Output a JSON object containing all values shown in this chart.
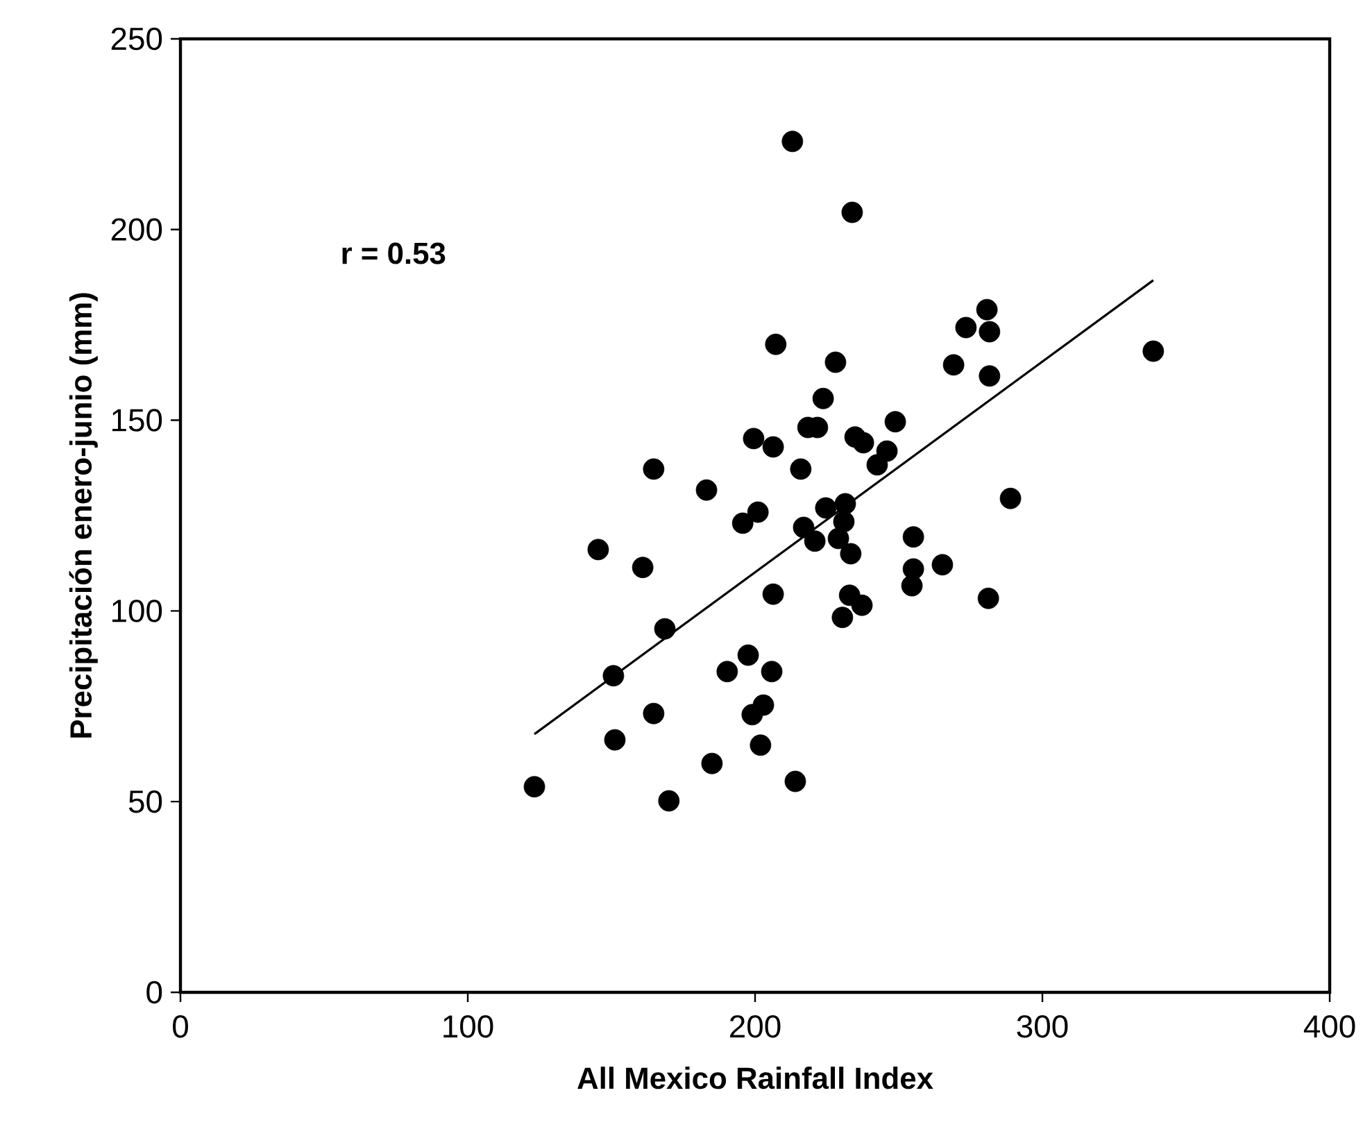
{
  "chart_data": {
    "type": "scatter",
    "xlabel": "All Mexico Rainfall Index",
    "ylabel": "Precipitación enero-junio (mm)",
    "annotations": [
      "r = 0.53"
    ],
    "xlim": [
      0,
      400
    ],
    "ylim": [
      0,
      250
    ],
    "xticks": [
      0,
      100,
      200,
      300,
      400
    ],
    "yticks": [
      0,
      50,
      100,
      150,
      200,
      250
    ],
    "marker": "circle",
    "grid": false,
    "series": [
      {
        "color": "#000000",
        "x": [
          164.7,
          183.1,
          199.5,
          206.3,
          218.4,
          221.7,
          234.8,
          237.7,
          248.8,
          245.9,
          242.5,
          215.9,
          201.0,
          195.7,
          224.6,
          231.4,
          230.9,
          216.9,
          220.8,
          229.0,
          233.3,
          288.9,
          255.1,
          265.2,
          255.1,
          254.6,
          281.2,
          232.9,
          237.2,
          230.4,
          206.3,
          145.4,
          160.9,
          168.6,
          150.7,
          164.7,
          151.2,
          197.6,
          190.3,
          205.8,
          202.9,
          199.0,
          201.9,
          185.0,
          214.0,
          123.2,
          170.0,
          213.0,
          233.8,
          207.2,
          228.0,
          223.7,
          280.7,
          273.4,
          281.6,
          269.1,
          281.6,
          338.6
        ],
        "values": [
          137.2,
          131.7,
          145.2,
          143.0,
          148.1,
          148.1,
          145.6,
          144.1,
          149.6,
          141.9,
          138.3,
          137.2,
          125.9,
          123.0,
          127.0,
          128.1,
          123.4,
          121.9,
          118.3,
          119.0,
          115.0,
          129.5,
          119.4,
          112.1,
          111.0,
          106.6,
          103.3,
          104.1,
          101.5,
          98.3,
          104.4,
          116.1,
          111.4,
          95.3,
          83.0,
          73.1,
          66.2,
          88.4,
          84.1,
          84.1,
          75.3,
          72.8,
          64.8,
          60.0,
          55.3,
          53.9,
          50.2,
          223.1,
          204.5,
          169.9,
          165.2,
          155.7,
          179.0,
          174.3,
          173.2,
          164.5,
          161.6,
          168.1
        ]
      },
      {
        "type": "line",
        "color": "#000000",
        "marker": "none",
        "x": [
          123.2,
          338.6
        ],
        "values": [
          67.7,
          186.7
        ]
      }
    ]
  }
}
